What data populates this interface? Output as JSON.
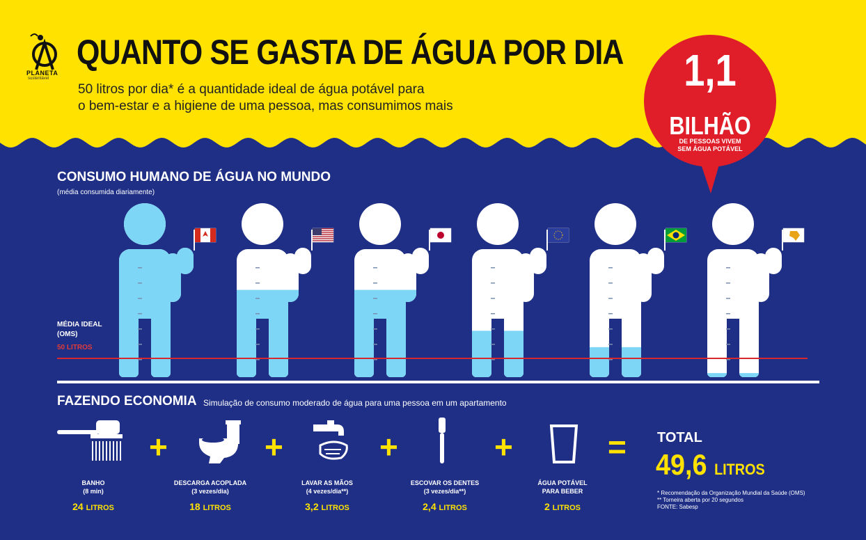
{
  "brand": {
    "name": "PLANETA",
    "tagline": "sustentável"
  },
  "header": {
    "title": "QUANTO SE GASTA DE ÁGUA POR DIA",
    "subtitle_line1": "50 litros por dia* é a quantidade ideal de água potável para",
    "subtitle_line2": "o bem-estar e a higiene de uma pessoa, mas consumimos mais"
  },
  "callout": {
    "number": "1,1",
    "unit": "BILHÃO",
    "text_line1": "DE PESSOAS VIVEM",
    "text_line2": "SEM ÁGUA POTÁVEL",
    "color": "#e01e2a"
  },
  "consumption": {
    "title": "CONSUMO HUMANO DE ÁGUA NO MUNDO",
    "note": "(média consumida diariamente)",
    "ideal_label_line1": "MÉDIA IDEAL",
    "ideal_label_line2": "(OMS)",
    "ideal_value": "50 LITROS",
    "water_color": "#7dd6f5",
    "figures": [
      {
        "flag": "canada-flag",
        "fill_fraction": 1.0
      },
      {
        "flag": "usa-flag",
        "fill_fraction": 0.64
      },
      {
        "flag": "japan-flag",
        "fill_fraction": 0.64
      },
      {
        "flag": "eu-flag",
        "fill_fraction": 0.34
      },
      {
        "flag": "brazil-flag",
        "fill_fraction": 0.22
      },
      {
        "flag": "africa-flag",
        "fill_fraction": 0.03
      }
    ]
  },
  "economy": {
    "title": "FAZENDO ECONOMIA",
    "note": "Simulação de consumo moderado de água para uma pessoa em um apartamento",
    "items": [
      {
        "icon": "shower-icon",
        "label_line1": "BANHO",
        "label_line2": "(8 min)",
        "value": "24",
        "unit": "LITROS"
      },
      {
        "icon": "toilet-icon",
        "label_line1": "DESCARGA ACOPLADA",
        "label_line2": "(3 vezes/dia)",
        "value": "18",
        "unit": "LITROS"
      },
      {
        "icon": "faucet-hands-icon",
        "label_line1": "LAVAR AS  MÃOS",
        "label_line2": "(4 vezes/dia**)",
        "value": "3,2",
        "unit": "LITROS"
      },
      {
        "icon": "toothbrush-icon",
        "label_line1": "ESCOVAR OS DENTES",
        "label_line2": "(3 vezes/dia**)",
        "value": "2,4",
        "unit": "LITROS"
      },
      {
        "icon": "glass-icon",
        "label_line1": "ÁGUA POTÁVEL",
        "label_line2": "PARA BEBER",
        "value": "2",
        "unit": "LITROS"
      }
    ],
    "plus": "+",
    "equals": "=",
    "total_label": "TOTAL",
    "total_value": "49,6",
    "total_unit": "LITROS"
  },
  "footnotes": {
    "line1": "* Recomendação da Organização Mundial da Saúde (OMS)",
    "line2": "** Torneira aberta por 20 segundos",
    "line3": "FONTE: Sabesp"
  },
  "colors": {
    "yellow": "#ffe200",
    "navy": "#1f2f86",
    "red": "#d8282d"
  }
}
